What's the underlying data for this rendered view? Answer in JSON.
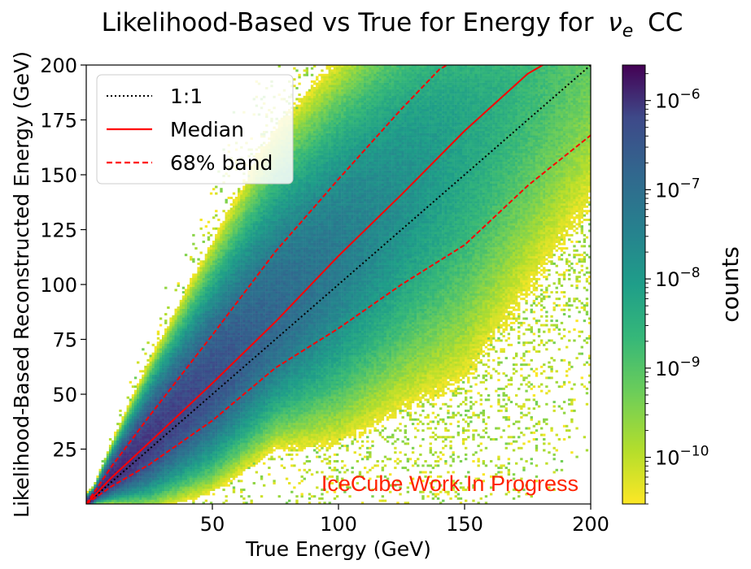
{
  "chart_data": {
    "type": "heatmap",
    "title": "Likelihood-Based vs True for Energy  for",
    "title_symbol": "ν",
    "title_subscript": "e",
    "title_suffix": "CC",
    "xlabel": "True Energy (GeV)",
    "ylabel": "Likelihood-Based Reconstructed Energy (GeV)",
    "xlim": [
      0,
      200
    ],
    "ylim": [
      0,
      200
    ],
    "x_ticks": [
      50,
      100,
      150,
      200
    ],
    "y_ticks": [
      25,
      50,
      75,
      100,
      125,
      150,
      175,
      200
    ],
    "colorbar": {
      "label": "counts",
      "scale": "log",
      "range": [
        3e-11,
        2.5e-06
      ],
      "tick_mantissa": "10",
      "tick_exponents": [
        "−6",
        "−7",
        "−8",
        "−9",
        "−10"
      ],
      "colormap": "viridis_r"
    },
    "series": [
      {
        "name": "1:1",
        "style": "dotted",
        "color": "#000000",
        "x": [
          0,
          200
        ],
        "y": [
          0,
          200
        ]
      },
      {
        "name": "Median",
        "style": "solid",
        "color": "#ff0000",
        "x": [
          0,
          10,
          25,
          50,
          75,
          100,
          125,
          150,
          175,
          181
        ],
        "y": [
          0,
          12,
          28,
          55,
          83,
          113,
          141,
          170,
          196,
          200
        ]
      },
      {
        "name": "68% band",
        "style": "dashed",
        "color": "#ff0000",
        "upper": {
          "x": [
            0,
            10,
            25,
            50,
            75,
            100,
            125,
            140,
            143
          ],
          "y": [
            0,
            17,
            40,
            77,
            115,
            148,
            180,
            198,
            200
          ]
        },
        "lower": {
          "x": [
            0,
            10,
            25,
            50,
            75,
            100,
            125,
            150,
            175,
            200
          ],
          "y": [
            0,
            8,
            18,
            38,
            62,
            80,
            100,
            118,
            145,
            168
          ]
        }
      }
    ],
    "legend": {
      "position": "top-left",
      "entries": [
        "1:1",
        "Median",
        "68% band"
      ]
    },
    "annotation": "IceCube Work In Progress",
    "annotation_color": "#ff2200"
  }
}
